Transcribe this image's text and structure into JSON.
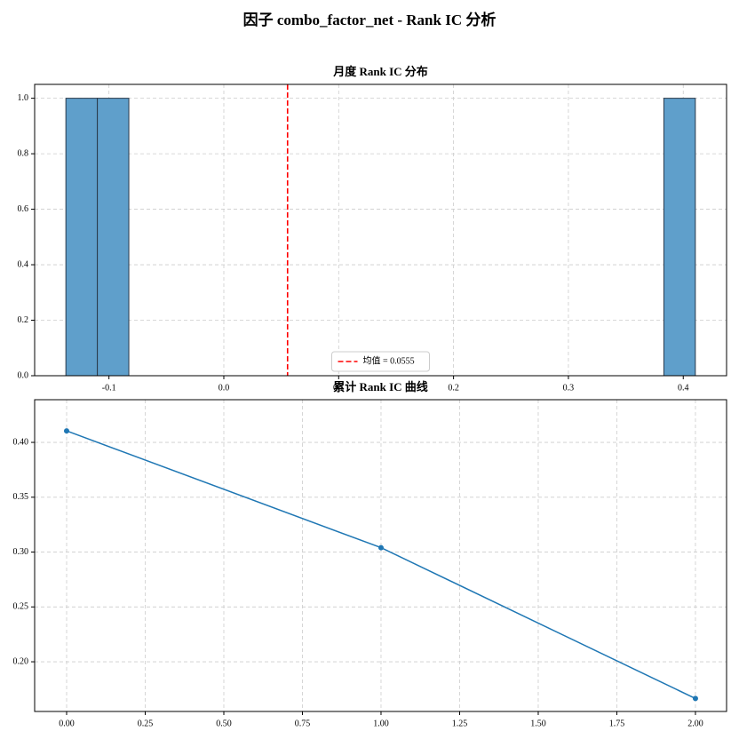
{
  "title": "因子 combo_factor_net - Rank IC 分析",
  "chart_data": [
    {
      "type": "histogram",
      "title": "月度 Rank IC 分布",
      "bins": [
        -0.1375,
        -0.1101,
        -0.0827,
        -0.0553,
        -0.0279,
        -0.0005,
        0.0269,
        0.0543,
        0.0817,
        0.1091,
        0.1365,
        0.1639,
        0.1913,
        0.2187,
        0.2461,
        0.2735,
        0.3009,
        0.3283,
        0.3557,
        0.3831,
        0.4105
      ],
      "values": [
        1,
        1,
        0,
        0,
        0,
        0,
        0,
        0,
        0,
        0,
        0,
        0,
        0,
        0,
        0,
        0,
        0,
        0,
        0,
        1
      ],
      "color": "#5f9fcb",
      "edgecolor": "#2a3a4a",
      "vlines": [
        {
          "value": 0.0555,
          "name": "均值 = 0.0555",
          "color": "#ff0000"
        }
      ],
      "legend": "lower center",
      "xlim": [
        -0.1647,
        0.4377
      ],
      "xticks": [
        -0.1,
        {
          "value": 0.0,
          "label": "0.0"
        },
        0.1,
        0.2,
        0.3,
        0.4
      ],
      "ylim": [
        0,
        1.05
      ],
      "yticks": [
        {
          "value": 0,
          "label": "0.0"
        },
        0.2,
        0.4,
        0.6,
        0.8,
        {
          "value": 1,
          "label": "1.0"
        }
      ],
      "grid": true
    },
    {
      "type": "line",
      "title": "累计 Rank IC 曲线",
      "x": [
        0,
        1,
        2
      ],
      "values": [
        0.4105,
        0.304,
        0.1665
      ],
      "color": "#1f77b4",
      "xlim": [
        -0.1017,
        2.099
      ],
      "xticks": [
        {
          "value": 0,
          "label": "0.00"
        },
        0.25,
        {
          "value": 0.5,
          "label": "0.50"
        },
        0.75,
        {
          "value": 1,
          "label": "1.00"
        },
        1.25,
        {
          "value": 1.5,
          "label": "1.50"
        },
        1.75,
        {
          "value": 2,
          "label": "2.00"
        }
      ],
      "ylim": [
        0.1547,
        0.4389
      ],
      "yticks": [
        {
          "value": 0.2,
          "label": "0.20"
        },
        0.25,
        {
          "value": 0.3,
          "label": "0.30"
        },
        0.35,
        {
          "value": 0.4,
          "label": "0.40"
        }
      ],
      "grid": true
    }
  ]
}
